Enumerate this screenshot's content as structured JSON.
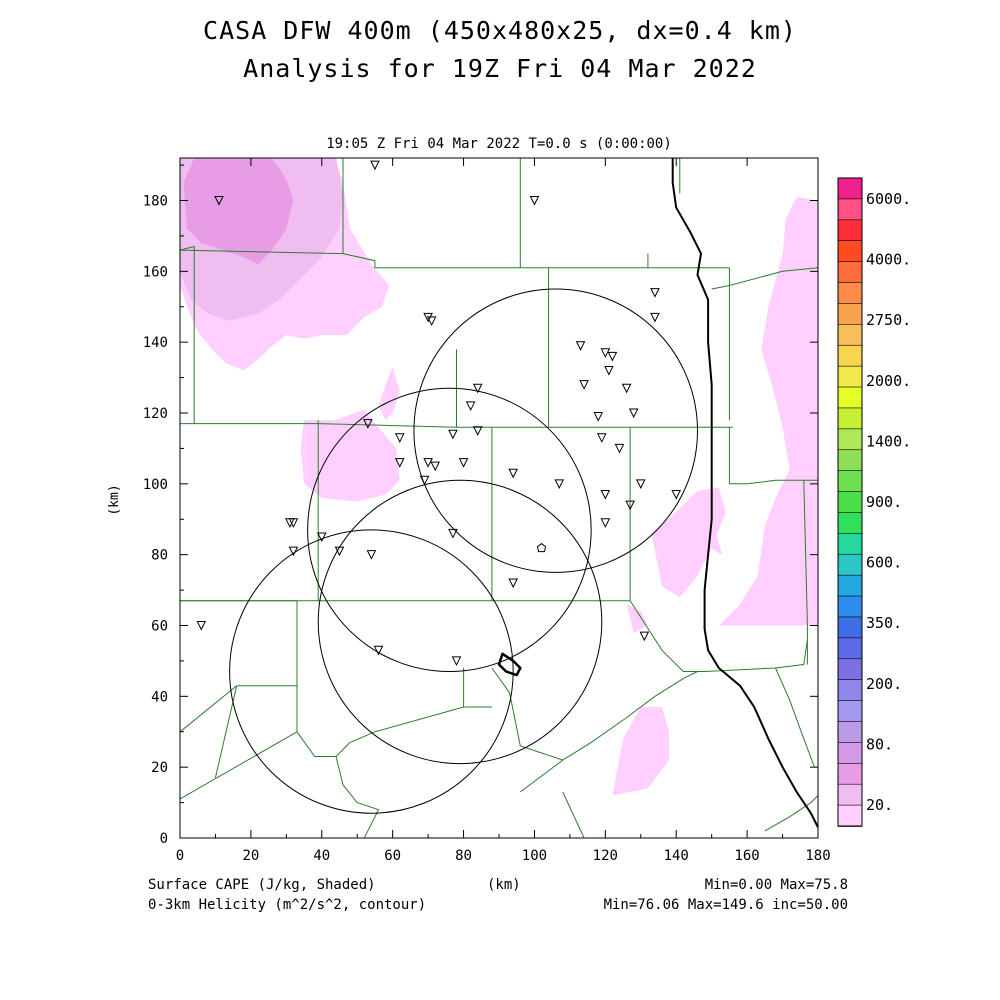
{
  "title_line1": "CASA DFW 400m (450x480x25, dx=0.4 km)",
  "title_line2": "Analysis for 19Z Fri 04 Mar 2022",
  "valid_time": "19:05 Z Fri 04 Mar 2022   T=0.0 s (0:00:00)",
  "footer": {
    "left1": "Surface CAPE (J/kg, Shaded)",
    "left2": "0-3km Helicity (m^2/s^2, contour)",
    "mid": "(km)",
    "right1": "Min=0.00 Max=75.8",
    "right2": "Min=76.06 Max=149.6 inc=50.00"
  },
  "chart_data": {
    "type": "heatmap",
    "xlabel": "",
    "ylabel": "(km)",
    "x_unit_label": "(km)",
    "xlim": [
      0,
      180
    ],
    "ylim": [
      0,
      192
    ],
    "x_ticks": [
      0,
      20,
      40,
      60,
      80,
      100,
      120,
      140,
      160,
      180
    ],
    "y_ticks": [
      0,
      20,
      40,
      60,
      80,
      100,
      120,
      140,
      160,
      180
    ],
    "colorbar": {
      "labels": [
        "6000.",
        "4000.",
        "2750.",
        "2000.",
        "1400.",
        "900.",
        "600.",
        "350.",
        "200.",
        "80.",
        "20."
      ],
      "colors": [
        "#f0218e",
        "#ff5184",
        "#ff2e3b",
        "#ff4b22",
        "#ff6c3d",
        "#ff8a4c",
        "#f9a24b",
        "#f9be59",
        "#f9d44e",
        "#f2e74b",
        "#e4ff25",
        "#c5f035",
        "#ade857",
        "#8fdf56",
        "#6fdf52",
        "#4ddf4a",
        "#2ee05c",
        "#25d8a0",
        "#2ac7c7",
        "#24a7e0",
        "#2e8eee",
        "#3e6fe8",
        "#5d6be8",
        "#7d6fe4",
        "#8d88ea",
        "#a39aed",
        "#bb9ae8",
        "#d49ce6",
        "#e79ce6",
        "#f0bdf0",
        "#ffd0ff"
      ]
    },
    "cape_shaded": {
      "units": "J/kg",
      "min": 0.0,
      "max": 75.8,
      "regions": [
        {
          "level": 20,
          "color": "#ffd0ff",
          "points": [
            [
              0,
              156
            ],
            [
              2,
              150
            ],
            [
              5,
              143
            ],
            [
              9,
              138
            ],
            [
              13,
              134
            ],
            [
              18,
              132
            ],
            [
              22,
              135
            ],
            [
              26,
              139
            ],
            [
              30,
              142
            ],
            [
              35,
              141
            ],
            [
              40,
              142
            ],
            [
              47,
              142
            ],
            [
              52,
              147
            ],
            [
              57,
              150
            ],
            [
              59,
              156
            ],
            [
              54,
              162
            ],
            [
              48,
              172
            ],
            [
              46,
              185
            ],
            [
              44,
              192
            ],
            [
              0,
              192
            ]
          ]
        },
        {
          "level": 20,
          "color": "#ffd0ff",
          "points": [
            [
              35,
              118
            ],
            [
              44,
              118
            ],
            [
              52,
              121
            ],
            [
              56,
              116
            ],
            [
              61,
              110
            ],
            [
              62,
              101
            ],
            [
              58,
              97
            ],
            [
              50,
              95
            ],
            [
              40,
              96
            ],
            [
              35,
              100
            ],
            [
              34,
              110
            ]
          ]
        },
        {
          "level": 20,
          "color": "#ffd0ff",
          "points": [
            [
              56,
              122
            ],
            [
              58,
              128
            ],
            [
              60,
              133
            ],
            [
              62,
              126
            ],
            [
              60,
              120
            ],
            [
              58,
              118
            ]
          ]
        },
        {
          "level": 20,
          "color": "#ffd0ff",
          "points": [
            [
              152,
              60
            ],
            [
              158,
              66
            ],
            [
              163,
              74
            ],
            [
              165,
              88
            ],
            [
              168,
              96
            ],
            [
              172,
              104
            ],
            [
              170,
              116
            ],
            [
              167,
              128
            ],
            [
              164,
              138
            ],
            [
              166,
              150
            ],
            [
              170,
              165
            ],
            [
              171,
              175
            ],
            [
              174,
              181
            ],
            [
              180,
              180
            ],
            [
              180,
              60
            ]
          ]
        },
        {
          "level": 20,
          "color": "#ffd0ff",
          "points": [
            [
              133,
              86
            ],
            [
              140,
              92
            ],
            [
              146,
              98
            ],
            [
              152,
              99
            ],
            [
              154,
              92
            ],
            [
              150,
              82
            ],
            [
              146,
              74
            ],
            [
              141,
              68
            ],
            [
              136,
              71
            ]
          ]
        },
        {
          "level": 20,
          "color": "#ffd0ff",
          "points": [
            [
              126,
              66
            ],
            [
              130,
              64
            ],
            [
              132,
              60
            ],
            [
              128,
              58
            ]
          ]
        },
        {
          "level": 20,
          "color": "#ffd0ff",
          "points": [
            [
              122,
              12
            ],
            [
              125,
              28
            ],
            [
              130,
              37
            ],
            [
              136,
              37
            ],
            [
              138,
              30
            ],
            [
              138,
              22
            ],
            [
              132,
              14
            ]
          ]
        },
        {
          "level": 20,
          "color": "#ffd0ff",
          "points": [
            [
              146,
              84
            ],
            [
              150,
              90
            ],
            [
              153,
              80
            ]
          ]
        },
        {
          "level": 40,
          "color": "#f0bdf0",
          "points": [
            [
              3,
              152
            ],
            [
              8,
              148
            ],
            [
              14,
              146
            ],
            [
              22,
              148
            ],
            [
              28,
              152
            ],
            [
              34,
              158
            ],
            [
              40,
              164
            ],
            [
              45,
              172
            ],
            [
              46,
              182
            ],
            [
              44,
              192
            ],
            [
              0,
              192
            ],
            [
              0,
              160
            ]
          ]
        },
        {
          "level": 80,
          "color": "#e79ce6",
          "points": [
            [
              2,
              172
            ],
            [
              6,
              168
            ],
            [
              12,
              166
            ],
            [
              18,
              164
            ],
            [
              22,
              162
            ],
            [
              26,
              166
            ],
            [
              30,
              172
            ],
            [
              32,
              180
            ],
            [
              30,
              186
            ],
            [
              26,
              192
            ],
            [
              4,
              192
            ],
            [
              1,
              185
            ]
          ]
        }
      ]
    },
    "helicity_contours": {
      "units": "m^2/s^2",
      "min": 76.06,
      "max": 149.6,
      "increment": 50.0,
      "radar_range_circles": [
        {
          "center": [
            106,
            115
          ],
          "radius": 40
        },
        {
          "center": [
            76,
            87
          ],
          "radius": 40
        },
        {
          "center": [
            79,
            61
          ],
          "radius": 40
        },
        {
          "center": [
            54,
            47
          ],
          "radius": 40
        }
      ],
      "closed_contour": {
        "value": 100,
        "points": [
          [
            91,
            52
          ],
          [
            94,
            50
          ],
          [
            96,
            48
          ],
          [
            95,
            46
          ],
          [
            92,
            47
          ],
          [
            90,
            49
          ]
        ]
      }
    },
    "county_lines": [
      [
        [
          0,
          166
        ],
        [
          46,
          165
        ],
        [
          55,
          163
        ],
        [
          55,
          161
        ],
        [
          104,
          161
        ],
        [
          155,
          161
        ]
      ],
      [
        [
          0,
          117
        ],
        [
          39,
          117
        ],
        [
          78,
          116
        ],
        [
          102,
          116
        ],
        [
          127,
          116
        ],
        [
          156,
          116
        ]
      ],
      [
        [
          39,
          118
        ],
        [
          39,
          67
        ]
      ],
      [
        [
          88,
          116
        ],
        [
          88,
          67
        ]
      ],
      [
        [
          78,
          116
        ],
        [
          78,
          138
        ]
      ],
      [
        [
          104,
          161
        ],
        [
          104,
          116
        ]
      ],
      [
        [
          0,
          67
        ],
        [
          39,
          67
        ],
        [
          88,
          67
        ],
        [
          127,
          67
        ]
      ],
      [
        [
          127,
          116
        ],
        [
          127,
          67
        ]
      ],
      [
        [
          155,
          116
        ],
        [
          155,
          100
        ],
        [
          160,
          100
        ],
        [
          168,
          101
        ],
        [
          180,
          101
        ]
      ],
      [
        [
          155,
          161
        ],
        [
          155,
          118
        ]
      ],
      [
        [
          132,
          161
        ],
        [
          132,
          165
        ]
      ],
      [
        [
          46,
          165
        ],
        [
          46,
          192
        ]
      ],
      [
        [
          96,
          161
        ],
        [
          96,
          192
        ]
      ],
      [
        [
          0,
          166
        ],
        [
          4,
          167
        ],
        [
          4,
          117
        ]
      ],
      [
        [
          150,
          155
        ],
        [
          155,
          156
        ],
        [
          170,
          160
        ],
        [
          180,
          161
        ]
      ],
      [
        [
          141,
          192
        ],
        [
          141,
          182
        ]
      ],
      [
        [
          0,
          67
        ],
        [
          16,
          67
        ],
        [
          33,
          67
        ]
      ],
      [
        [
          33,
          67
        ],
        [
          33,
          30
        ]
      ],
      [
        [
          0,
          30
        ],
        [
          16,
          43
        ],
        [
          33,
          43
        ]
      ],
      [
        [
          16,
          43
        ],
        [
          10,
          17
        ]
      ],
      [
        [
          33,
          30
        ],
        [
          38,
          23
        ],
        [
          44,
          23
        ],
        [
          48,
          27
        ]
      ],
      [
        [
          0,
          11
        ],
        [
          33,
          30
        ]
      ],
      [
        [
          48,
          27
        ],
        [
          55,
          30
        ],
        [
          80,
          37
        ],
        [
          88,
          37
        ]
      ],
      [
        [
          80,
          37
        ],
        [
          80,
          48
        ]
      ],
      [
        [
          88,
          48
        ],
        [
          93,
          41
        ],
        [
          96,
          26
        ],
        [
          108,
          22
        ],
        [
          116,
          27
        ],
        [
          126,
          34
        ],
        [
          134,
          40
        ],
        [
          142,
          45
        ],
        [
          146,
          47
        ]
      ],
      [
        [
          96,
          13
        ],
        [
          108,
          22
        ]
      ],
      [
        [
          108,
          13
        ],
        [
          114,
          0
        ]
      ],
      [
        [
          44,
          23
        ],
        [
          46,
          15
        ],
        [
          50,
          10
        ],
        [
          56,
          8
        ],
        [
          54,
          4
        ],
        [
          52,
          0
        ]
      ],
      [
        [
          127,
          67
        ],
        [
          136,
          53
        ],
        [
          142,
          47
        ],
        [
          148,
          47
        ],
        [
          168,
          48
        ],
        [
          176,
          49
        ],
        [
          177,
          56
        ]
      ],
      [
        [
          176,
          101
        ],
        [
          177,
          60
        ],
        [
          177,
          49
        ]
      ],
      [
        [
          168,
          48
        ],
        [
          172,
          39
        ],
        [
          176,
          28
        ],
        [
          179,
          20
        ]
      ],
      [
        [
          165,
          2
        ],
        [
          172,
          6
        ],
        [
          178,
          10
        ],
        [
          180,
          12
        ]
      ]
    ],
    "state_border": [
      [
        139,
        192
      ],
      [
        139,
        185
      ],
      [
        140,
        178
      ],
      [
        144,
        171
      ],
      [
        147,
        165
      ],
      [
        146,
        159
      ],
      [
        149,
        152
      ],
      [
        149,
        140
      ],
      [
        150,
        128
      ],
      [
        150,
        115
      ],
      [
        150,
        103
      ],
      [
        150,
        90
      ],
      [
        149,
        80
      ],
      [
        148,
        70
      ],
      [
        148,
        59
      ],
      [
        149,
        53
      ],
      [
        152,
        48
      ],
      [
        158,
        43
      ],
      [
        162,
        37
      ],
      [
        166,
        28
      ],
      [
        170,
        20
      ],
      [
        174,
        13
      ],
      [
        178,
        7
      ],
      [
        180,
        3
      ]
    ],
    "stations": [
      [
        55,
        190
      ],
      [
        11,
        180
      ],
      [
        100,
        180
      ],
      [
        134,
        154
      ],
      [
        70,
        147
      ],
      [
        71,
        146
      ],
      [
        134,
        147
      ],
      [
        113,
        139
      ],
      [
        120,
        137
      ],
      [
        122,
        136
      ],
      [
        121,
        132
      ],
      [
        114,
        128
      ],
      [
        126,
        127
      ],
      [
        84,
        127
      ],
      [
        82,
        122
      ],
      [
        118,
        119
      ],
      [
        128,
        120
      ],
      [
        53,
        117
      ],
      [
        84,
        115
      ],
      [
        77,
        114
      ],
      [
        62,
        113
      ],
      [
        119,
        113
      ],
      [
        124,
        110
      ],
      [
        70,
        106
      ],
      [
        72,
        105
      ],
      [
        62,
        106
      ],
      [
        80,
        106
      ],
      [
        94,
        103
      ],
      [
        69,
        101
      ],
      [
        107,
        100
      ],
      [
        130,
        100
      ],
      [
        140,
        97
      ],
      [
        120,
        97
      ],
      [
        127,
        94
      ],
      [
        31,
        89
      ],
      [
        32,
        89
      ],
      [
        120,
        89
      ],
      [
        77,
        86
      ],
      [
        40,
        85
      ],
      [
        32,
        81
      ],
      [
        45,
        81
      ],
      [
        54,
        80
      ],
      [
        94,
        72
      ],
      [
        6,
        60
      ],
      [
        131,
        57
      ],
      [
        56,
        53
      ],
      [
        78,
        50
      ]
    ],
    "special_marker": [
      102,
      82
    ]
  }
}
